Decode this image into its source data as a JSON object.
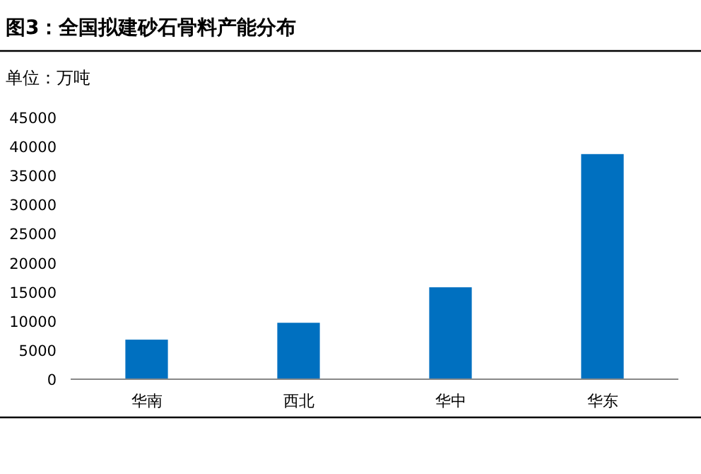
{
  "chart_data": {
    "type": "bar",
    "title": "图3：全国拟建砂石骨料产能分布",
    "subtitle": "单位：万吨",
    "categories": [
      "华南",
      "西北",
      "华中",
      "华东"
    ],
    "values": [
      6800,
      9700,
      15800,
      38700
    ],
    "color": "#0070c0",
    "ylim": [
      0,
      45000
    ],
    "yticks": [
      0,
      5000,
      10000,
      15000,
      20000,
      25000,
      30000,
      35000,
      40000,
      45000
    ],
    "grid": false
  }
}
